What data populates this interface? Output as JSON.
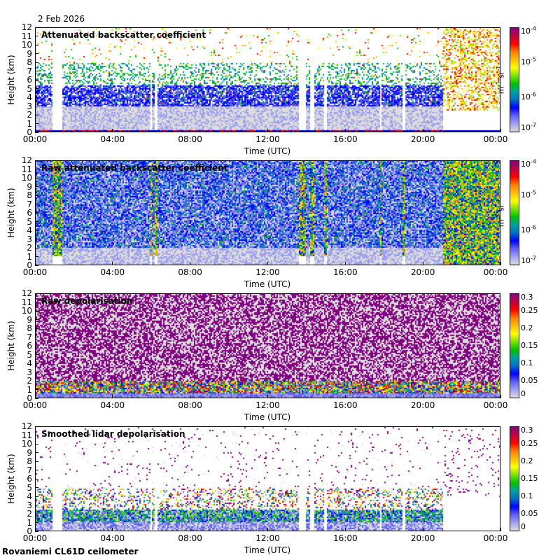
{
  "header": {
    "date": "2 Feb 2026"
  },
  "footer": {
    "station": "Rovaniemi CL61D ceilometer"
  },
  "colormap": [
    "#dcdcdc",
    "#a0a0f0",
    "#6060f0",
    "#0000ff",
    "#0070c0",
    "#00a0a0",
    "#00c000",
    "#80e000",
    "#ffff00",
    "#ffc000",
    "#ff8000",
    "#ff0000",
    "#c00040",
    "#800080"
  ],
  "chart_data": [
    {
      "type": "heatmap",
      "title": "Attenuated backscatter coefficient",
      "xlabel": "Time (UTC)",
      "ylabel": "Height (km)",
      "xticks": [
        "00:00",
        "04:00",
        "08:00",
        "12:00",
        "16:00",
        "20:00",
        "00:00"
      ],
      "yticks": [
        "0",
        "1",
        "2",
        "3",
        "4",
        "5",
        "6",
        "7",
        "8",
        "9",
        "10",
        "11",
        "12"
      ],
      "ylim": [
        0,
        12
      ],
      "colorbar": {
        "scale": "log",
        "ticks": [
          "10-7",
          "10-6",
          "10-5",
          "10-4"
        ],
        "tick_base": "10",
        "tick_exps": [
          "-7",
          "-6",
          "-5",
          "-4"
        ],
        "unit": "m-1 sr-1",
        "range": [
          1e-07,
          0.0001
        ]
      }
    },
    {
      "type": "heatmap",
      "title": "Raw attenuated backscatter coefficient",
      "xlabel": "Time (UTC)",
      "ylabel": "Height (km)",
      "xticks": [
        "00:00",
        "04:00",
        "08:00",
        "12:00",
        "16:00",
        "20:00",
        "00:00"
      ],
      "yticks": [
        "0",
        "1",
        "2",
        "3",
        "4",
        "5",
        "6",
        "7",
        "8",
        "9",
        "10",
        "11",
        "12"
      ],
      "ylim": [
        0,
        12
      ],
      "colorbar": {
        "scale": "log",
        "ticks": [
          "10-7",
          "10-6",
          "10-5",
          "10-4"
        ],
        "tick_base": "10",
        "tick_exps": [
          "-7",
          "-6",
          "-5",
          "-4"
        ],
        "unit": "m-1 sr-1",
        "range": [
          1e-07,
          0.0001
        ]
      }
    },
    {
      "type": "heatmap",
      "title": "Raw depolarisation",
      "xlabel": "Time (UTC)",
      "ylabel": "Height (km)",
      "xticks": [
        "00:00",
        "04:00",
        "08:00",
        "12:00",
        "16:00",
        "20:00",
        "00:00"
      ],
      "yticks": [
        "0",
        "1",
        "2",
        "3",
        "4",
        "5",
        "6",
        "7",
        "8",
        "9",
        "10",
        "11",
        "12"
      ],
      "ylim": [
        0,
        12
      ],
      "colorbar": {
        "scale": "linear",
        "ticks": [
          "0",
          "0.05",
          "0.1",
          "0.15",
          "0.2",
          "0.25",
          "0.3"
        ],
        "range": [
          0,
          0.3
        ]
      }
    },
    {
      "type": "heatmap",
      "title": "Smoothed lidar depolarisation",
      "xlabel": "Time (UTC)",
      "ylabel": "Height (km)",
      "xticks": [
        "00:00",
        "04:00",
        "08:00",
        "12:00",
        "16:00",
        "20:00",
        "00:00"
      ],
      "yticks": [
        "0",
        "1",
        "2",
        "3",
        "4",
        "5",
        "6",
        "7",
        "8",
        "9",
        "10",
        "11",
        "12"
      ],
      "ylim": [
        0,
        12
      ],
      "colorbar": {
        "scale": "linear",
        "ticks": [
          "0",
          "0.05",
          "0.1",
          "0.15",
          "0.2",
          "0.25",
          "0.3"
        ],
        "range": [
          0,
          0.3
        ]
      }
    }
  ]
}
